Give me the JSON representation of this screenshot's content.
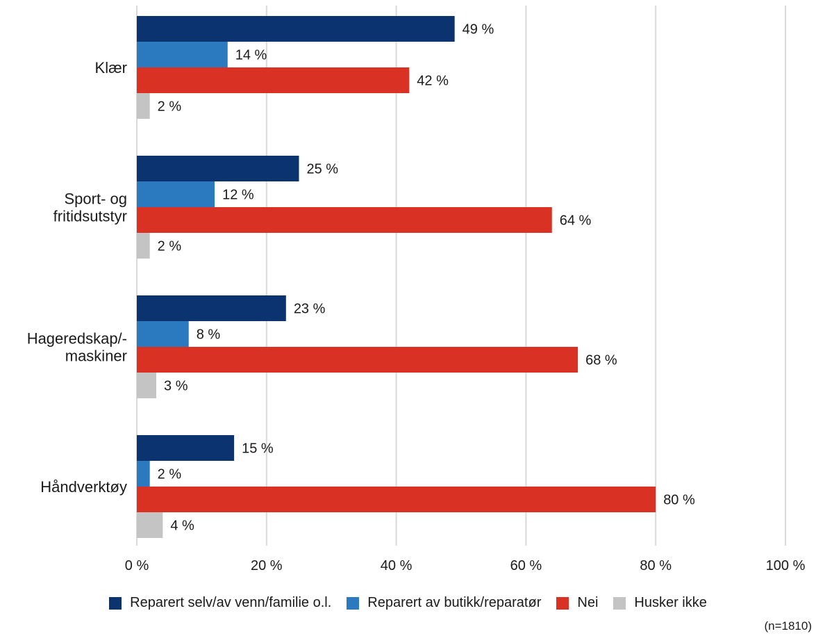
{
  "chart_data": {
    "type": "bar",
    "orientation": "horizontal",
    "categories": [
      "Klær",
      "Sport- og\nfritidsutstyr",
      "Hageredskap/-\nmaskiner",
      "Håndverktøy"
    ],
    "series": [
      {
        "name": "Reparert selv/av venn/familie o.l.",
        "color": "#0b3370",
        "values": [
          49,
          25,
          23,
          15
        ],
        "labels": [
          "49 %",
          "25 %",
          "23 %",
          "15 %"
        ]
      },
      {
        "name": "Reparert av butikk/reparatør",
        "color": "#2b79bf",
        "values": [
          14,
          12,
          8,
          2
        ],
        "labels": [
          "14 %",
          "12 %",
          "8 %",
          "2 %"
        ]
      },
      {
        "name": "Nei",
        "color": "#d93123",
        "values": [
          42,
          64,
          68,
          80
        ],
        "labels": [
          "42 %",
          "64 %",
          "68 %",
          "80 %"
        ]
      },
      {
        "name": "Husker ikke",
        "color": "#c4c4c4",
        "values": [
          2,
          2,
          3,
          4
        ],
        "labels": [
          "2 %",
          "2 %",
          "3 %",
          "4 %"
        ]
      }
    ],
    "xlim": [
      0,
      100
    ],
    "xticks": [
      0,
      20,
      40,
      60,
      80,
      100
    ],
    "xtick_labels": [
      "0 %",
      "20 %",
      "40 %",
      "60 %",
      "80 %",
      "100 %"
    ],
    "grid": "vertical",
    "legend_position": "bottom",
    "note": "(n=1810)"
  }
}
